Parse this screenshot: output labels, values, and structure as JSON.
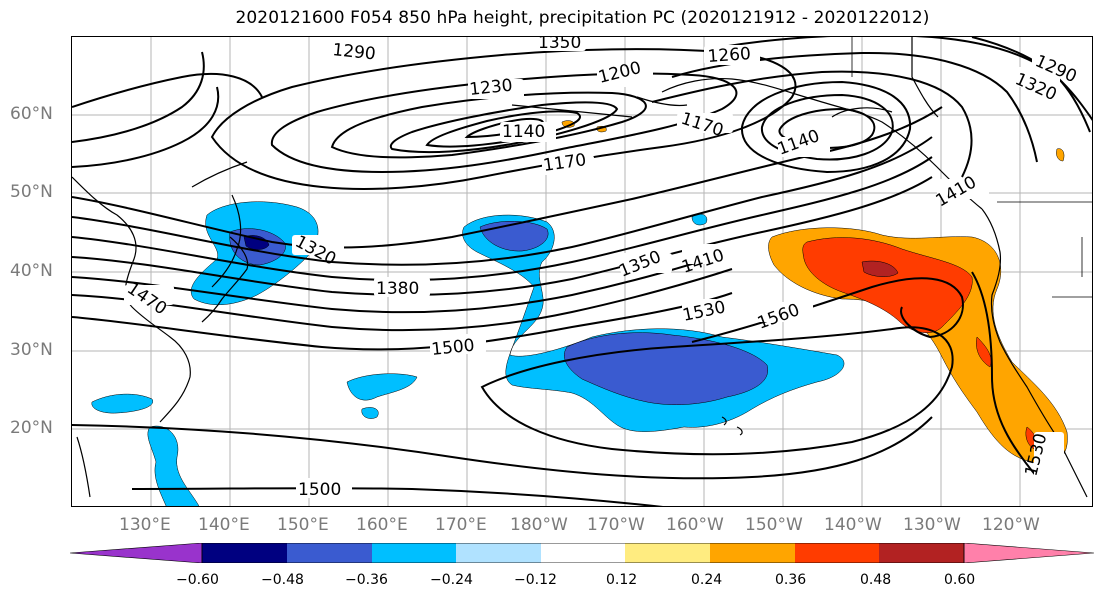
{
  "title": "2020121600 F054 850 hPa height, precipitation PC (2020121912 - 2020122012)",
  "lat_labels": [
    "60°N",
    "50°N",
    "40°N",
    "30°N",
    "20°N"
  ],
  "lon_labels": [
    "130°E",
    "140°E",
    "150°E",
    "160°E",
    "170°E",
    "180°W",
    "170°W",
    "160°W",
    "150°W",
    "140°W",
    "130°W",
    "120°W"
  ],
  "contour_labels": [
    "1290",
    "1350",
    "1260",
    "1290",
    "1320",
    "1230",
    "1200",
    "1140",
    "1170",
    "1140",
    "1170",
    "1410",
    "1320",
    "1350",
    "1410",
    "1380",
    "1470",
    "1530",
    "1560",
    "1500",
    "1500",
    "1530"
  ],
  "colorbar": {
    "ticks": [
      "−0.60",
      "−0.48",
      "−0.36",
      "−0.24",
      "−0.12",
      "0.12",
      "0.24",
      "0.36",
      "0.48",
      "0.60"
    ],
    "colors": [
      "#9933cc",
      "#000080",
      "#3a5bd0",
      "#00bfff",
      "#b0e2ff",
      "#ffffff",
      "#ffec80",
      "#ffa500",
      "#ff3c00",
      "#b22222",
      "#ff80aa"
    ]
  }
}
